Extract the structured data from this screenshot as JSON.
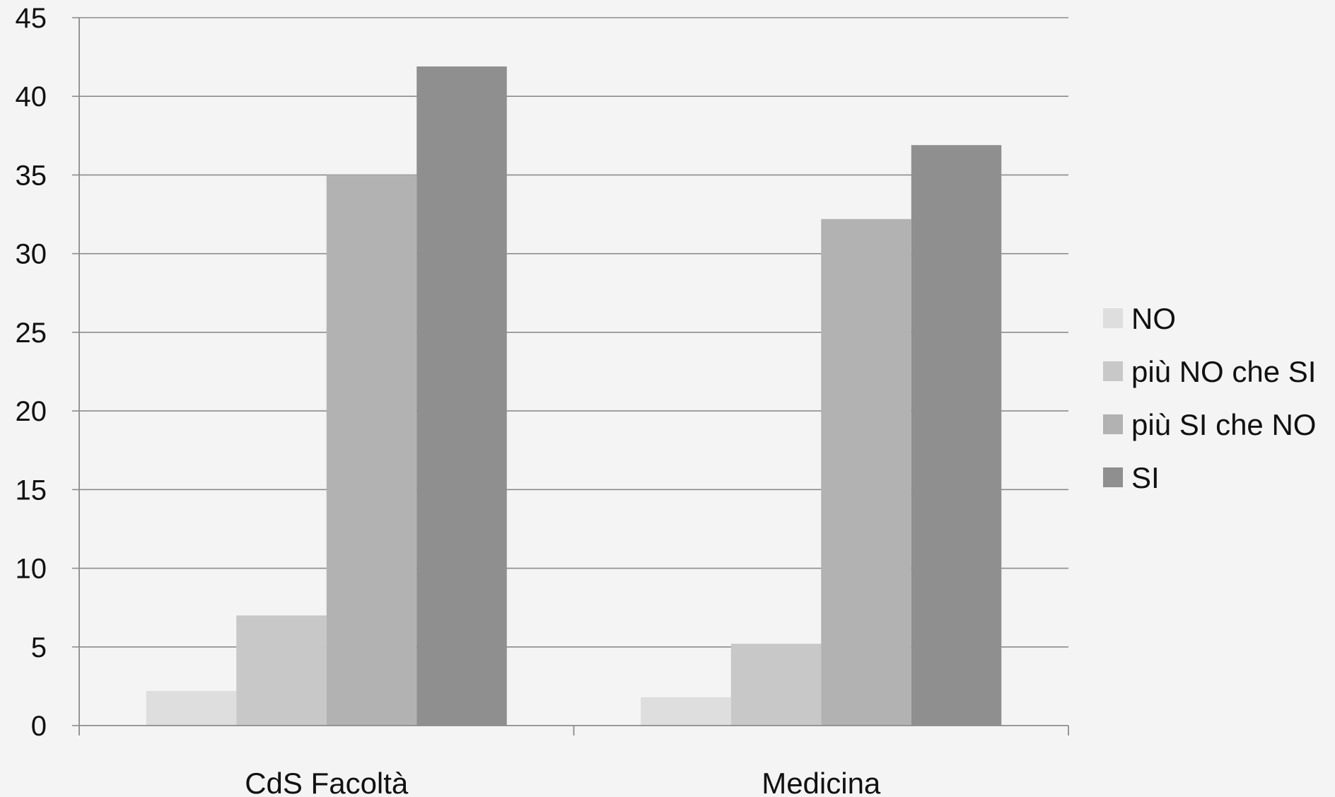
{
  "chart_data": {
    "type": "bar",
    "title": "",
    "xlabel": "",
    "ylabel": "",
    "categories": [
      "CdS Facoltà",
      "Medicina"
    ],
    "series": [
      {
        "name": "NO",
        "values": [
          2.2,
          1.8
        ],
        "color": "#dedede"
      },
      {
        "name": "più NO che SI",
        "values": [
          7,
          5.2
        ],
        "color": "#c8c8c8"
      },
      {
        "name": "più SI che NO",
        "values": [
          35,
          32.2
        ],
        "color": "#b2b2b2"
      },
      {
        "name": "SI",
        "values": [
          41.9,
          36.9
        ],
        "color": "#8f8f8f"
      }
    ],
    "ylim": [
      0,
      45
    ],
    "yticks": [
      0,
      5,
      10,
      15,
      20,
      25,
      30,
      35,
      40,
      45
    ],
    "grid": true,
    "legend_position": "right",
    "colors": {
      "background": "#f4f4f4",
      "gridline": "#8c8c8c",
      "axis": "#8c8c8c",
      "text": "#111111"
    }
  }
}
